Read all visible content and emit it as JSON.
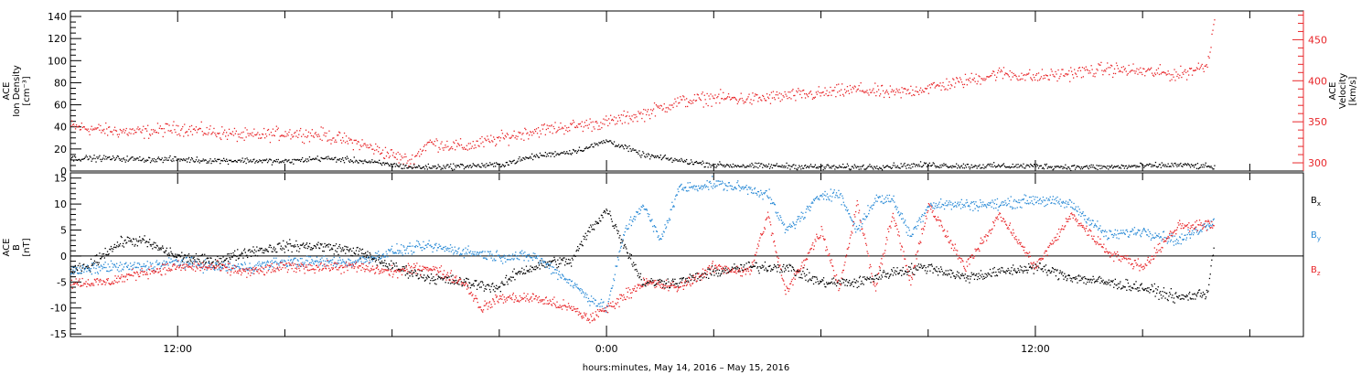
{
  "colors": {
    "axis": "#000000",
    "red": "#e8262a",
    "blue": "#2a8ad6",
    "black": "#000000"
  },
  "xlabel": "hours:minutes, May 14, 2016 – May 15, 2016",
  "x_ticks": [
    "12:00",
    "0:00",
    "12:00"
  ],
  "chart_data": [
    {
      "type": "scatter",
      "panel": "plasma",
      "x_unit": "hours from 2016-05-14 00:00 UT",
      "xlim": [
        9.0,
        43.5
      ],
      "ylabel_lines": [
        "ACE",
        "Ion Density",
        "[cm⁻³]"
      ],
      "ylim": [
        0,
        145
      ],
      "y_ticks": [
        "0",
        "20",
        "40",
        "60",
        "80",
        "100",
        "120",
        "140"
      ],
      "y2label_lines": [
        "ACE",
        "Velocity",
        "[km/s]"
      ],
      "y2lim": [
        290,
        485
      ],
      "y2_ticks": [
        "300",
        "350",
        "400",
        "450"
      ],
      "series": [
        {
          "name": "Ion Density",
          "axis": "left",
          "color": "#000000",
          "x": [
            9.0,
            10.0,
            11.0,
            12.0,
            13.0,
            14.0,
            15.0,
            16.0,
            17.0,
            18.0,
            18.5,
            19.0,
            20.0,
            21.0,
            21.5,
            22.0,
            22.5,
            23.0,
            23.5,
            24.0,
            24.5,
            25.0,
            26.0,
            27.0,
            28.0,
            29.0,
            30.0,
            31.0,
            32.0,
            33.0,
            34.0,
            35.0,
            36.0,
            37.0,
            38.0,
            39.0,
            40.0,
            41.0
          ],
          "values": [
            12,
            12,
            11,
            11,
            10,
            10,
            9,
            12,
            10,
            6,
            4,
            4,
            5,
            6,
            10,
            14,
            16,
            18,
            22,
            28,
            22,
            15,
            10,
            6,
            5,
            5,
            4,
            4,
            5,
            6,
            5,
            5,
            5,
            4,
            4,
            5,
            6,
            4
          ]
        },
        {
          "name": "Velocity",
          "axis": "right",
          "color": "#e8262a",
          "x": [
            9.0,
            10.0,
            11.0,
            12.0,
            13.0,
            14.0,
            15.0,
            16.0,
            17.0,
            18.0,
            18.5,
            19.0,
            20.0,
            21.0,
            22.0,
            23.0,
            24.0,
            25.0,
            26.0,
            27.0,
            28.0,
            29.0,
            30.0,
            31.0,
            32.0,
            33.0,
            34.0,
            35.0,
            36.0,
            37.0,
            38.0,
            39.0,
            40.0,
            40.8,
            41.0
          ],
          "values": [
            345,
            340,
            338,
            343,
            338,
            333,
            337,
            335,
            325,
            310,
            302,
            325,
            320,
            330,
            340,
            345,
            350,
            360,
            375,
            380,
            378,
            382,
            385,
            390,
            385,
            392,
            400,
            410,
            405,
            410,
            415,
            412,
            408,
            420,
            478
          ]
        }
      ]
    },
    {
      "type": "scatter",
      "panel": "magnetic field",
      "x_unit": "hours from 2016-05-14 00:00 UT",
      "xlim": [
        9.0,
        43.5
      ],
      "ylabel_lines": [
        "ACE",
        "B",
        "[nT]"
      ],
      "ylim": [
        -15.5,
        16
      ],
      "y_ticks": [
        "-15",
        "-10",
        "-5",
        "0",
        "5",
        "10",
        "15"
      ],
      "series": [
        {
          "name": "Bx",
          "color": "#000000",
          "x": [
            9.0,
            9.5,
            10.0,
            10.5,
            11.0,
            12.0,
            13.0,
            14.0,
            15.0,
            16.0,
            17.0,
            18.0,
            19.0,
            20.0,
            21.0,
            21.5,
            22.0,
            22.5,
            23.0,
            23.5,
            24.0,
            25.0,
            26.0,
            27.0,
            28.0,
            29.0,
            30.0,
            31.0,
            32.0,
            33.0,
            34.0,
            35.0,
            36.0,
            37.0,
            38.0,
            39.0,
            40.0,
            40.8,
            41.0
          ],
          "values": [
            -3,
            -2,
            1,
            3,
            3,
            0,
            -1,
            1,
            2,
            2,
            1,
            -2,
            -4,
            -5,
            -6,
            -3,
            -2,
            -1,
            -1,
            5,
            9,
            -5,
            -5,
            -3,
            -2,
            -2,
            -5,
            -5,
            -3,
            -2,
            -4,
            -3,
            -2,
            -4,
            -5,
            -6,
            -8,
            -7,
            3
          ]
        },
        {
          "name": "By",
          "color": "#2a8ad6",
          "x": [
            9.0,
            10.0,
            11.0,
            12.0,
            13.0,
            14.0,
            15.0,
            16.0,
            17.0,
            18.0,
            19.0,
            20.0,
            21.0,
            22.0,
            23.0,
            23.5,
            24.0,
            24.5,
            25.0,
            25.5,
            26.0,
            27.0,
            28.0,
            28.5,
            29.0,
            29.5,
            30.0,
            30.5,
            31.0,
            31.5,
            32.0,
            32.5,
            33.0,
            34.0,
            35.0,
            36.0,
            37.0,
            38.0,
            39.0,
            40.0,
            41.0
          ],
          "values": [
            -3,
            -2,
            -2,
            -1,
            -2,
            -2,
            -1,
            -1,
            -1,
            1,
            2,
            1,
            0,
            0,
            -5,
            -8,
            -10,
            5,
            10,
            3,
            13,
            14,
            13,
            12,
            5,
            8,
            12,
            12,
            5,
            11,
            11,
            4,
            10,
            10,
            10,
            11,
            10,
            4,
            5,
            3,
            7
          ]
        },
        {
          "name": "Bz",
          "color": "#e8262a",
          "x": [
            9.0,
            10.0,
            11.0,
            12.0,
            13.0,
            14.0,
            15.0,
            16.0,
            17.0,
            18.0,
            19.0,
            20.0,
            20.5,
            21.0,
            22.0,
            22.5,
            23.0,
            23.5,
            24.0,
            25.0,
            26.0,
            27.0,
            28.0,
            28.5,
            29.0,
            30.0,
            30.5,
            31.0,
            31.5,
            32.0,
            32.5,
            33.0,
            34.0,
            35.0,
            36.0,
            37.0,
            38.0,
            39.0,
            40.0,
            41.0
          ],
          "values": [
            -5,
            -5,
            -3,
            -2,
            -2,
            -3,
            -2,
            -2,
            -2,
            -3,
            -2,
            -5,
            -10,
            -8,
            -8,
            -9,
            -10,
            -12,
            -10,
            -5,
            -6,
            -2,
            -3,
            8,
            -7,
            5,
            -6,
            10,
            -6,
            8,
            -5,
            10,
            -2,
            8,
            -2,
            8,
            1,
            -2,
            6,
            6
          ]
        }
      ]
    }
  ]
}
